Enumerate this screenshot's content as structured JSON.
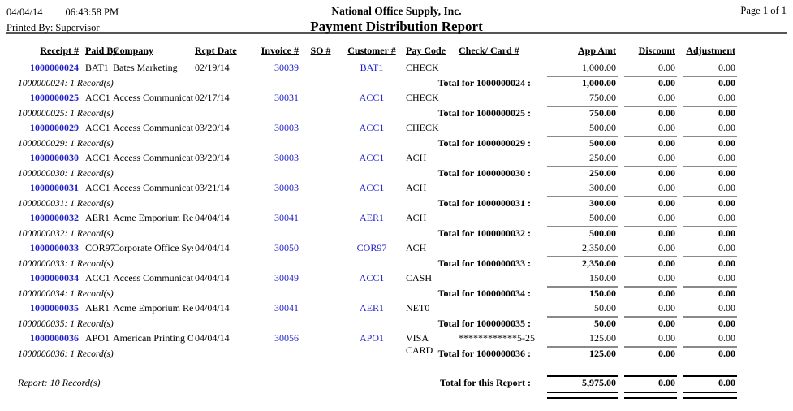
{
  "header": {
    "date": "04/04/14",
    "time": "06:43:58 PM",
    "printed_by": "Printed By: Supervisor",
    "company": "National Office Supply, Inc.",
    "title": "Payment Distribution Report",
    "page": "Page 1 of 1"
  },
  "columns": {
    "receipt": "Receipt #",
    "paid_by": "Paid By",
    "company": "Company",
    "rcpt_date": "Rcpt Date",
    "invoice": "Invoice #",
    "so": "SO #",
    "customer": "Customer #",
    "pay_code": "Pay Code",
    "check_card": "Check/ Card #",
    "app_amt": "App Amt",
    "discount": "Discount",
    "adjustment": "Adjustment"
  },
  "records": [
    {
      "receipt": "1000000024",
      "paid_by": "BAT1",
      "company": "Bates Marketing",
      "rcpt_date": "02/19/14",
      "invoice": "30039",
      "so": "",
      "customer": "BAT1",
      "pay_code": "CHECK",
      "check_card": "",
      "app_amt": "1,000.00",
      "discount": "0.00",
      "adjustment": "0.00",
      "total_label": "Total for 1000000024 :",
      "total_app": "1,000.00",
      "total_disc": "0.00",
      "total_adj": "0.00",
      "note": "1000000024: 1 Record(s)"
    },
    {
      "receipt": "1000000025",
      "paid_by": "ACC1",
      "company": "Access Communication",
      "rcpt_date": "02/17/14",
      "invoice": "30031",
      "so": "",
      "customer": "ACC1",
      "pay_code": "CHECK",
      "check_card": "",
      "app_amt": "750.00",
      "discount": "0.00",
      "adjustment": "0.00",
      "total_label": "Total for 1000000025 :",
      "total_app": "750.00",
      "total_disc": "0.00",
      "total_adj": "0.00",
      "note": "1000000025: 1 Record(s)"
    },
    {
      "receipt": "1000000029",
      "paid_by": "ACC1",
      "company": "Access Communication",
      "rcpt_date": "03/20/14",
      "invoice": "30003",
      "so": "",
      "customer": "ACC1",
      "pay_code": "CHECK",
      "check_card": "",
      "app_amt": "500.00",
      "discount": "0.00",
      "adjustment": "0.00",
      "total_label": "Total for 1000000029 :",
      "total_app": "500.00",
      "total_disc": "0.00",
      "total_adj": "0.00",
      "note": "1000000029: 1 Record(s)"
    },
    {
      "receipt": "1000000030",
      "paid_by": "ACC1",
      "company": "Access Communication",
      "rcpt_date": "03/20/14",
      "invoice": "30003",
      "so": "",
      "customer": "ACC1",
      "pay_code": "ACH",
      "check_card": "",
      "app_amt": "250.00",
      "discount": "0.00",
      "adjustment": "0.00",
      "total_label": "Total for 1000000030 :",
      "total_app": "250.00",
      "total_disc": "0.00",
      "total_adj": "0.00",
      "note": "1000000030: 1 Record(s)"
    },
    {
      "receipt": "1000000031",
      "paid_by": "ACC1",
      "company": "Access Communication",
      "rcpt_date": "03/21/14",
      "invoice": "30003",
      "so": "",
      "customer": "ACC1",
      "pay_code": "ACH",
      "check_card": "",
      "app_amt": "300.00",
      "discount": "0.00",
      "adjustment": "0.00",
      "total_label": "Total for 1000000031 :",
      "total_app": "300.00",
      "total_disc": "0.00",
      "total_adj": "0.00",
      "note": "1000000031: 1 Record(s)"
    },
    {
      "receipt": "1000000032",
      "paid_by": "AER1",
      "company": "Acme Emporium Retail",
      "rcpt_date": "04/04/14",
      "invoice": "30041",
      "so": "",
      "customer": "AER1",
      "pay_code": "ACH",
      "check_card": "",
      "app_amt": "500.00",
      "discount": "0.00",
      "adjustment": "0.00",
      "total_label": "Total for 1000000032 :",
      "total_app": "500.00",
      "total_disc": "0.00",
      "total_adj": "0.00",
      "note": "1000000032: 1 Record(s)"
    },
    {
      "receipt": "1000000033",
      "paid_by": "COR97",
      "company": "Corporate Office System",
      "rcpt_date": "04/04/14",
      "invoice": "30050",
      "so": "",
      "customer": "COR97",
      "pay_code": "ACH",
      "check_card": "",
      "app_amt": "2,350.00",
      "discount": "0.00",
      "adjustment": "0.00",
      "total_label": "Total for 1000000033 :",
      "total_app": "2,350.00",
      "total_disc": "0.00",
      "total_adj": "0.00",
      "note": "1000000033: 1 Record(s)"
    },
    {
      "receipt": "1000000034",
      "paid_by": "ACC1",
      "company": "Access Communication",
      "rcpt_date": "04/04/14",
      "invoice": "30049",
      "so": "",
      "customer": "ACC1",
      "pay_code": "CASH",
      "check_card": "",
      "app_amt": "150.00",
      "discount": "0.00",
      "adjustment": "0.00",
      "total_label": "Total for 1000000034 :",
      "total_app": "150.00",
      "total_disc": "0.00",
      "total_adj": "0.00",
      "note": "1000000034: 1 Record(s)"
    },
    {
      "receipt": "1000000035",
      "paid_by": "AER1",
      "company": "Acme Emporium Retail",
      "rcpt_date": "04/04/14",
      "invoice": "30041",
      "so": "",
      "customer": "AER1",
      "pay_code": "NET0",
      "check_card": "",
      "app_amt": "50.00",
      "discount": "0.00",
      "adjustment": "0.00",
      "total_label": "Total for 1000000035 :",
      "total_app": "50.00",
      "total_disc": "0.00",
      "total_adj": "0.00",
      "note": "1000000035: 1 Record(s)"
    },
    {
      "receipt": "1000000036",
      "paid_by": "APO1",
      "company": "American Printing Orga",
      "rcpt_date": "04/04/14",
      "invoice": "30056",
      "so": "",
      "customer": "APO1",
      "pay_code": "VISA CARD",
      "check_card": "************5-25",
      "app_amt": "125.00",
      "discount": "0.00",
      "adjustment": "0.00",
      "total_label": "Total for 1000000036 :",
      "total_app": "125.00",
      "total_disc": "0.00",
      "total_adj": "0.00",
      "note": "1000000036: 1 Record(s)"
    }
  ],
  "footer": {
    "report_note": "Report: 10 Record(s)",
    "total_label": "Total for this Report :",
    "total_app": "5,975.00",
    "total_disc": "0.00",
    "total_adj": "0.00"
  },
  "colors": {
    "link_blue": "#2222CC",
    "subtotal_rule": "#8a8a8a",
    "header_rule": "#555555"
  }
}
